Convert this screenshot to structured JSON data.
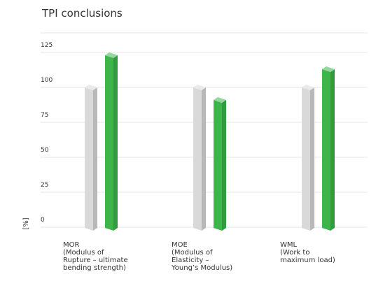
{
  "chart_data": {
    "type": "bar3d",
    "title": "TPI conclusions",
    "y_label": "[%]",
    "categories": [
      "MOR\n(Modulus of\nRupture – ultimate\nbending strength)",
      "MOE\n(Modulus of\nElasticity –\nYoung’s Modulus)",
      "WML\n(Work to\nmaximum load)"
    ],
    "series": [
      {
        "color": "#d9d9d9",
        "values": [
          100,
          100,
          100
        ]
      },
      {
        "color": "#3db54a",
        "values": [
          123,
          91,
          113
        ]
      }
    ],
    "ylim": [
      0,
      150
    ],
    "yticks": [
      0,
      25,
      50,
      75,
      100,
      125
    ],
    "grid": true
  }
}
